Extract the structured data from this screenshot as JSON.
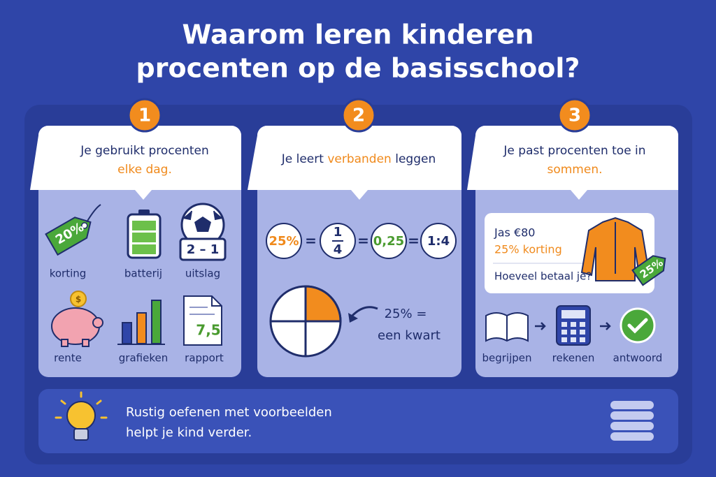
{
  "title": {
    "lines": [
      "Waarom leren kinderen",
      "procenten op de basisschool?"
    ]
  },
  "panels": [
    {
      "number": "1",
      "heading": [
        [
          {
            "text": "Je gebruikt procenten",
            "accent": false
          }
        ],
        [
          {
            "text": "elke dag.",
            "accent": true
          }
        ]
      ],
      "items": [
        {
          "label": "korting",
          "icon_text": "20%"
        },
        {
          "label": "batterij"
        },
        {
          "label": "uitslag",
          "icon_text": "2 – 1"
        },
        {
          "label": "rente",
          "icon_text": "$"
        },
        {
          "label": "grafieken"
        },
        {
          "label": "rapport",
          "icon_text": "7,5"
        }
      ]
    },
    {
      "number": "2",
      "heading": [
        [
          {
            "text": "Je leert ",
            "accent": false
          },
          {
            "text": "verbanden",
            "accent": true
          },
          {
            "text": " leggen",
            "accent": false
          }
        ]
      ],
      "terms": [
        {
          "text": "25%",
          "color": "#f08a1c"
        },
        {
          "numerator": "1",
          "denominator": "4",
          "color": "#1f2d6b"
        },
        {
          "text": "0,25",
          "color": "#4a9b2f"
        },
        {
          "text": "1:4",
          "color": "#1f2d6b"
        }
      ],
      "equals": [
        "=",
        "=",
        "="
      ],
      "quarter_note": [
        "25% =",
        "een kwart"
      ]
    },
    {
      "number": "3",
      "heading": [
        [
          {
            "text": "Je past procenten toe in",
            "accent": false
          }
        ],
        [
          {
            "text": "sommen.",
            "accent": true
          }
        ]
      ],
      "problem": {
        "item": "Jas €80",
        "discount": "25% korting",
        "question": "Hoeveel betaal je?",
        "tag": "25%"
      },
      "steps": [
        "begrijpen",
        "rekenen",
        "antwoord"
      ]
    }
  ],
  "tip": {
    "lines": [
      "Rustig oefenen met voorbeelden",
      "helpt je kind verder."
    ]
  }
}
